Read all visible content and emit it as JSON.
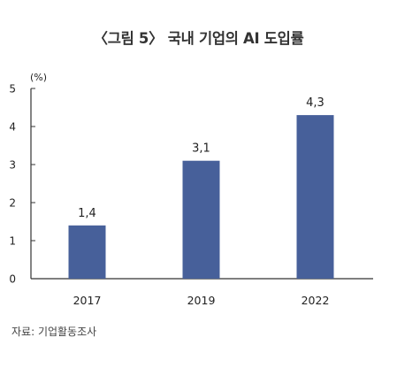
{
  "title": "〈그림 5〉 국내 기업의 AI 도입률",
  "source": "자료: 기업활동조사",
  "colors": {
    "bar": "#47609a",
    "axis": "#333333",
    "text": "#222222"
  },
  "chart_data": {
    "type": "bar",
    "title": "〈그림 5〉 국내 기업의 AI 도입률",
    "unit_label": "(%)",
    "xlabel": "",
    "ylabel": "",
    "categories": [
      "2017",
      "2019",
      "2022"
    ],
    "values": [
      1.4,
      3.1,
      4.3
    ],
    "data_labels": [
      "1,4",
      "3,1",
      "4,3"
    ],
    "ylim": [
      0,
      5
    ],
    "yticks": [
      "0",
      "1",
      "2",
      "3",
      "4",
      "5"
    ],
    "grid": false,
    "legend": "none"
  }
}
